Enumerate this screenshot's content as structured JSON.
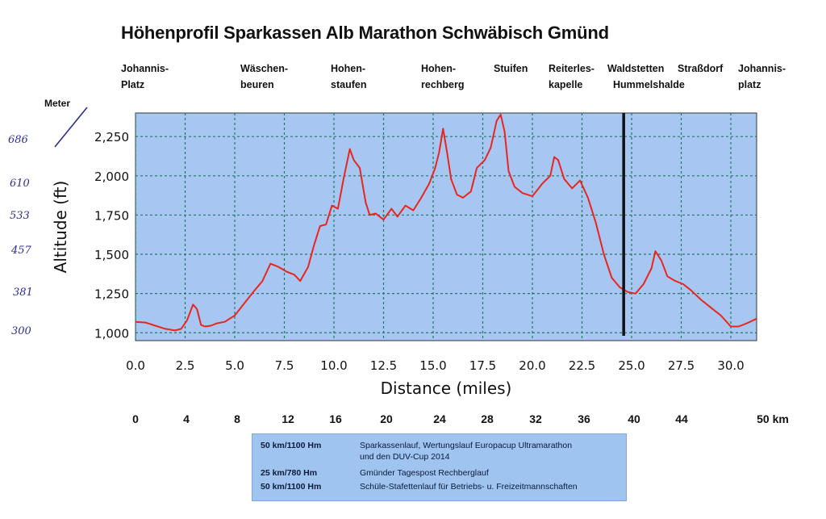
{
  "title": "Höhenprofil Sparkassen Alb Marathon Schwäbisch Gmünd",
  "places": [
    {
      "label": "Johannis-\nPlatz"
    },
    {
      "label": "Wäschen-\nbeuren"
    },
    {
      "label": "Hohen-\nstaufen"
    },
    {
      "label": "Hohen-\nrechberg"
    },
    {
      "label": "Stuifen"
    },
    {
      "label": "Reiterles-\nkapelle"
    },
    {
      "label": "Waldstetten\n  Hummelshalde"
    },
    {
      "label": "Straßdorf"
    },
    {
      "label": "Johannis-\nplatz"
    }
  ],
  "meter_label": "Meter",
  "handwritten_meters": [
    "686",
    "610",
    "533",
    "457",
    "381",
    "300"
  ],
  "km_labels": [
    "0",
    "4",
    "8",
    "12",
    "16",
    "20",
    "24",
    "28",
    "32",
    "36",
    "40",
    "44",
    "50 km"
  ],
  "legend": [
    {
      "km": "50 km/1100 Hm",
      "text": "Sparkassenlauf, Wertungslauf Europacup Ultramarathon",
      "text2": "und den DUV-Cup 2014"
    },
    {
      "km": "25 km/780 Hm",
      "text": "Gmünder Tagespost Rechberglauf"
    },
    {
      "km": "50 km/1100 Hm",
      "text": "Schüle-Stafettenlauf für Betriebs- u. Freizeitmannschaften"
    }
  ],
  "colors": {
    "plot_bg": "#a7c7f2",
    "grid": "#1f7a62",
    "line": "#e8261e",
    "marker": "#111111",
    "legend_bg": "#9fc4f0"
  },
  "chart_data": {
    "type": "line",
    "title": "",
    "xlabel": "Distance (miles)",
    "ylabel": "Altitude (ft)",
    "xlim": [
      0,
      31.3
    ],
    "ylim": [
      950,
      2400
    ],
    "xticks": [
      "0.0",
      "2.5",
      "5.0",
      "7.5",
      "10.0",
      "12.5",
      "15.0",
      "17.5",
      "20.0",
      "22.5",
      "25.0",
      "27.5",
      "30.0"
    ],
    "yticks": [
      "1,000",
      "1,250",
      "1,500",
      "1,750",
      "2,000",
      "2,250"
    ],
    "grid": true,
    "vertical_marker_x": 24.6,
    "series": [
      {
        "x": [
          0,
          0.5,
          1.0,
          1.5,
          2.0,
          2.3,
          2.6,
          2.9,
          3.1,
          3.3,
          3.5,
          3.8,
          4.1,
          4.5,
          5.0,
          5.5,
          6.0,
          6.4,
          6.8,
          7.2,
          7.6,
          8.0,
          8.3,
          8.7,
          9.0,
          9.3,
          9.6,
          9.9,
          10.2,
          10.5,
          10.8,
          11.0,
          11.3,
          11.6,
          11.8,
          12.1,
          12.5,
          12.9,
          13.2,
          13.6,
          14.0,
          14.4,
          14.8,
          15.1,
          15.3,
          15.5,
          15.7,
          15.9,
          16.2,
          16.5,
          16.9,
          17.2,
          17.6,
          17.9,
          18.2,
          18.4,
          18.6,
          18.8,
          19.1,
          19.5,
          20.0,
          20.5,
          20.9,
          21.1,
          21.3,
          21.6,
          22.0,
          22.4,
          22.8,
          23.2,
          23.6,
          24.0,
          24.4,
          24.8,
          25.2,
          25.6,
          26.0,
          26.2,
          26.5,
          26.8,
          27.2,
          27.6,
          28.0,
          28.5,
          29.0,
          29.5,
          30.0,
          30.4,
          30.8,
          31.3
        ],
        "y": [
          1070,
          1065,
          1045,
          1025,
          1015,
          1025,
          1080,
          1180,
          1150,
          1050,
          1040,
          1045,
          1060,
          1070,
          1110,
          1190,
          1270,
          1330,
          1440,
          1420,
          1390,
          1370,
          1330,
          1420,
          1560,
          1680,
          1690,
          1810,
          1790,
          1990,
          2170,
          2100,
          2050,
          1830,
          1750,
          1760,
          1720,
          1790,
          1740,
          1810,
          1780,
          1860,
          1950,
          2050,
          2150,
          2300,
          2150,
          1980,
          1880,
          1860,
          1900,
          2050,
          2100,
          2180,
          2350,
          2390,
          2280,
          2030,
          1930,
          1890,
          1870,
          1950,
          2000,
          2120,
          2100,
          1980,
          1920,
          1970,
          1860,
          1700,
          1500,
          1350,
          1290,
          1260,
          1250,
          1310,
          1410,
          1520,
          1460,
          1360,
          1330,
          1310,
          1270,
          1210,
          1160,
          1110,
          1040,
          1040,
          1060,
          1090
        ]
      }
    ]
  }
}
